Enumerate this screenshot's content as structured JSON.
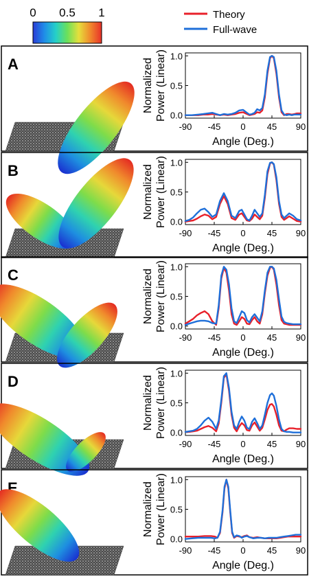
{
  "colorbar": {
    "ticks": [
      {
        "label": "0",
        "value": 0
      },
      {
        "label": "0.5",
        "value": 0.5
      },
      {
        "label": "1",
        "value": 1
      }
    ],
    "colormap": [
      "#2a3cd6",
      "#1f8ee8",
      "#25d0c8",
      "#6be05a",
      "#e6df3c",
      "#f08a2c",
      "#e8302a"
    ]
  },
  "legend": [
    {
      "name": "Theory",
      "color": "#e8202a"
    },
    {
      "name": "Full-wave",
      "color": "#1e6fd9"
    }
  ],
  "colors": {
    "theory": "#e8202a",
    "fullwave": "#1e6fd9"
  },
  "chart_data": [
    {
      "panel": "A",
      "type": "line",
      "ylabel_lines": [
        "Normalized",
        "Power (Linear)"
      ],
      "xlabel": "Angle (Deg.)",
      "xlim": [
        -90,
        90
      ],
      "ylim": [
        -0.05,
        1.05
      ],
      "xticks": [
        -90,
        -45,
        0,
        45,
        90
      ],
      "yticks": [
        0.0,
        0.5,
        1.0
      ],
      "ytick_labels": [
        "0.0",
        "0.5",
        "1.0"
      ],
      "series": [
        {
          "name": "Theory",
          "x": [
            -90,
            -80,
            -70,
            -62,
            -55,
            -48,
            -42,
            -36,
            -30,
            -24,
            -18,
            -12,
            -6,
            0,
            6,
            10,
            14,
            18,
            22,
            26,
            30,
            34,
            38,
            42,
            45,
            48,
            52,
            56,
            60,
            64,
            68,
            72,
            76,
            80,
            84,
            90
          ],
          "y": [
            0,
            0,
            0,
            0.01,
            0.01,
            0.02,
            0.01,
            0,
            0.01,
            0,
            0.01,
            0.02,
            0.04,
            0.05,
            0.02,
            0,
            0.01,
            0.02,
            0.05,
            0.04,
            0.08,
            0.3,
            0.7,
            0.96,
            1.0,
            0.96,
            0.7,
            0.3,
            0.05,
            0,
            0.02,
            0.02,
            0.01,
            0.02,
            0.03,
            0.03
          ]
        },
        {
          "name": "Full-wave",
          "x": [
            -90,
            -80,
            -70,
            -62,
            -55,
            -48,
            -42,
            -36,
            -30,
            -24,
            -18,
            -12,
            -6,
            0,
            6,
            10,
            14,
            18,
            22,
            26,
            30,
            34,
            38,
            42,
            45,
            48,
            52,
            56,
            60,
            64,
            68,
            72,
            76,
            80,
            84,
            90
          ],
          "y": [
            0,
            0,
            0.01,
            0.02,
            0.03,
            0.04,
            0.02,
            0,
            0.02,
            0.01,
            0.02,
            0.04,
            0.08,
            0.09,
            0.04,
            0.01,
            0.02,
            0.04,
            0.1,
            0.08,
            0.12,
            0.35,
            0.75,
            0.98,
            1.0,
            0.98,
            0.75,
            0.35,
            0.08,
            0.01,
            0,
            0.01,
            0,
            0.01,
            0.01,
            0.01
          ]
        }
      ]
    },
    {
      "panel": "B",
      "type": "line",
      "ylabel_lines": [
        "Normalized",
        "Power (Linear)"
      ],
      "xlabel": "Angle (Deg.)",
      "xlim": [
        -90,
        90
      ],
      "ylim": [
        -0.05,
        1.05
      ],
      "xticks": [
        -90,
        -45,
        0,
        45,
        90
      ],
      "yticks": [
        0.0,
        0.5,
        1.0
      ],
      "ytick_labels": [
        "0.0",
        "0.5",
        "1.0"
      ],
      "series": [
        {
          "name": "Theory",
          "x": [
            -90,
            -84,
            -78,
            -72,
            -66,
            -60,
            -54,
            -48,
            -42,
            -36,
            -30,
            -24,
            -18,
            -12,
            -6,
            -2,
            2,
            6,
            10,
            14,
            18,
            22,
            26,
            30,
            34,
            38,
            42,
            45,
            48,
            52,
            56,
            60,
            64,
            68,
            72,
            78,
            84,
            90
          ],
          "y": [
            0,
            0.01,
            0.02,
            0.05,
            0.09,
            0.12,
            0.1,
            0.04,
            0.08,
            0.3,
            0.43,
            0.3,
            0.06,
            0.03,
            0.12,
            0.14,
            0.08,
            0.02,
            0.01,
            0.05,
            0.12,
            0.08,
            0.04,
            0.1,
            0.4,
            0.8,
            0.98,
            1.0,
            0.96,
            0.7,
            0.3,
            0.08,
            0.03,
            0.06,
            0.09,
            0.05,
            0.01,
            0
          ]
        },
        {
          "name": "Full-wave",
          "x": [
            -90,
            -84,
            -78,
            -72,
            -66,
            -60,
            -54,
            -48,
            -42,
            -36,
            -30,
            -24,
            -18,
            -12,
            -6,
            -2,
            2,
            6,
            10,
            14,
            18,
            22,
            26,
            30,
            34,
            38,
            42,
            45,
            48,
            52,
            56,
            60,
            64,
            68,
            72,
            78,
            84,
            90
          ],
          "y": [
            0.01,
            0.03,
            0.07,
            0.14,
            0.2,
            0.22,
            0.16,
            0.08,
            0.12,
            0.35,
            0.48,
            0.35,
            0.1,
            0.06,
            0.18,
            0.2,
            0.12,
            0.04,
            0.02,
            0.1,
            0.2,
            0.14,
            0.08,
            0.14,
            0.45,
            0.85,
            0.99,
            1.0,
            0.97,
            0.75,
            0.35,
            0.12,
            0.06,
            0.1,
            0.14,
            0.1,
            0.04,
            0.02
          ]
        }
      ]
    },
    {
      "panel": "C",
      "type": "line",
      "ylabel_lines": [
        "Normalized",
        "Power (Linear)"
      ],
      "xlabel": "Angle (Deg.)",
      "xlim": [
        -90,
        90
      ],
      "ylim": [
        -0.05,
        1.05
      ],
      "xticks": [
        -90,
        -45,
        0,
        45,
        90
      ],
      "yticks": [
        0.0,
        0.5,
        1.0
      ],
      "ytick_labels": [
        "0.0",
        "0.5",
        "1.0"
      ],
      "series": [
        {
          "name": "Theory",
          "x": [
            -90,
            -84,
            -78,
            -72,
            -66,
            -60,
            -54,
            -48,
            -42,
            -38,
            -34,
            -30,
            -26,
            -22,
            -18,
            -14,
            -10,
            -6,
            -2,
            2,
            6,
            10,
            14,
            18,
            22,
            26,
            30,
            34,
            38,
            42,
            45,
            48,
            52,
            56,
            60,
            64,
            68,
            72,
            78,
            84,
            90
          ],
          "y": [
            0.04,
            0.08,
            0.12,
            0.18,
            0.22,
            0.25,
            0.2,
            0.08,
            0.02,
            0.3,
            0.8,
            0.98,
            0.9,
            0.6,
            0.2,
            0.04,
            0.02,
            0.08,
            0.15,
            0.12,
            0.04,
            0.03,
            0.1,
            0.15,
            0.08,
            0.04,
            0.2,
            0.55,
            0.85,
            0.98,
            1.0,
            0.95,
            0.7,
            0.35,
            0.1,
            0.04,
            0.03,
            0.02,
            0.02,
            0.02,
            0.02
          ]
        },
        {
          "name": "Full-wave",
          "x": [
            -90,
            -84,
            -78,
            -72,
            -66,
            -60,
            -54,
            -48,
            -42,
            -38,
            -34,
            -30,
            -26,
            -22,
            -18,
            -14,
            -10,
            -6,
            -2,
            2,
            6,
            10,
            14,
            18,
            22,
            26,
            30,
            34,
            38,
            42,
            45,
            48,
            52,
            56,
            60,
            64,
            68,
            72,
            78,
            84,
            90
          ],
          "y": [
            0.02,
            0.04,
            0.06,
            0.08,
            0.09,
            0.09,
            0.08,
            0.05,
            0.04,
            0.35,
            0.85,
            1.0,
            0.95,
            0.7,
            0.3,
            0.08,
            0.05,
            0.15,
            0.25,
            0.22,
            0.1,
            0.06,
            0.15,
            0.2,
            0.14,
            0.08,
            0.25,
            0.6,
            0.9,
            1.0,
            1.0,
            0.97,
            0.78,
            0.45,
            0.16,
            0.07,
            0.05,
            0.04,
            0.03,
            0.03,
            0.03
          ]
        }
      ]
    },
    {
      "panel": "D",
      "type": "line",
      "ylabel_lines": [
        "Normalized",
        "Power (Linear)"
      ],
      "xlabel": "Angle (Deg.)",
      "xlim": [
        -90,
        90
      ],
      "ylim": [
        -0.05,
        1.05
      ],
      "xticks": [
        -90,
        -45,
        0,
        45,
        90
      ],
      "yticks": [
        0.0,
        0.5,
        1.0
      ],
      "ytick_labels": [
        "0.0",
        "0.5",
        "1.0"
      ],
      "series": [
        {
          "name": "Theory",
          "x": [
            -90,
            -84,
            -78,
            -72,
            -66,
            -60,
            -54,
            -48,
            -42,
            -38,
            -34,
            -30,
            -26,
            -22,
            -18,
            -14,
            -10,
            -6,
            -2,
            2,
            6,
            10,
            14,
            18,
            22,
            26,
            30,
            34,
            38,
            42,
            45,
            48,
            52,
            56,
            60,
            64,
            68,
            72,
            78,
            84,
            90
          ],
          "y": [
            0.01,
            0.01,
            0.02,
            0.03,
            0.06,
            0.09,
            0.11,
            0.08,
            0.02,
            0.15,
            0.5,
            0.92,
            0.98,
            0.7,
            0.3,
            0.08,
            0.02,
            0.1,
            0.16,
            0.12,
            0.04,
            0.03,
            0.12,
            0.17,
            0.1,
            0.03,
            0.08,
            0.22,
            0.38,
            0.47,
            0.48,
            0.44,
            0.3,
            0.12,
            0.03,
            0.02,
            0.05,
            0.07,
            0.07,
            0.06,
            0.06
          ]
        },
        {
          "name": "Full-wave",
          "x": [
            -90,
            -84,
            -78,
            -72,
            -66,
            -60,
            -54,
            -48,
            -42,
            -38,
            -34,
            -30,
            -26,
            -22,
            -18,
            -14,
            -10,
            -6,
            -2,
            2,
            6,
            10,
            14,
            18,
            22,
            26,
            30,
            34,
            38,
            42,
            45,
            48,
            52,
            56,
            60,
            64,
            68,
            72,
            78,
            84,
            90
          ],
          "y": [
            0.01,
            0.02,
            0.03,
            0.06,
            0.12,
            0.2,
            0.25,
            0.18,
            0.06,
            0.2,
            0.55,
            0.95,
            1.0,
            0.75,
            0.35,
            0.12,
            0.06,
            0.18,
            0.27,
            0.2,
            0.08,
            0.06,
            0.18,
            0.24,
            0.16,
            0.06,
            0.12,
            0.3,
            0.5,
            0.63,
            0.66,
            0.62,
            0.45,
            0.22,
            0.06,
            0.02,
            0.01,
            0.01,
            0.0,
            0.0,
            0.0
          ]
        }
      ]
    },
    {
      "panel": "E",
      "type": "line",
      "ylabel_lines": [
        "Normalized",
        "Power (Linear)"
      ],
      "xlabel": "Angle (Deg.)",
      "xlim": [
        -90,
        90
      ],
      "ylim": [
        -0.05,
        1.05
      ],
      "xticks": [
        -90,
        -45,
        0,
        45,
        90
      ],
      "yticks": [
        0.0,
        0.5,
        1.0
      ],
      "ytick_labels": [
        "0.0",
        "0.5",
        "1.0"
      ],
      "series": [
        {
          "name": "Theory",
          "x": [
            -90,
            -80,
            -70,
            -60,
            -50,
            -44,
            -40,
            -36,
            -32,
            -29,
            -26,
            -23,
            -20,
            -17,
            -14,
            -10,
            -6,
            -2,
            2,
            6,
            10,
            16,
            22,
            28,
            34,
            40,
            46,
            52,
            58,
            64,
            70,
            76,
            82,
            90
          ],
          "y": [
            0.04,
            0.04,
            0.04,
            0.05,
            0.05,
            0.04,
            0.02,
            0.1,
            0.45,
            0.85,
            1.0,
            0.85,
            0.45,
            0.1,
            0.02,
            0.05,
            0.04,
            0.03,
            0.05,
            0.06,
            0.03,
            0.02,
            0.03,
            0.02,
            0.01,
            0.01,
            0.01,
            0.01,
            0.02,
            0.03,
            0.04,
            0.04,
            0.04,
            0.04
          ]
        },
        {
          "name": "Full-wave",
          "x": [
            -90,
            -80,
            -70,
            -60,
            -50,
            -44,
            -40,
            -36,
            -32,
            -29,
            -26,
            -23,
            -20,
            -17,
            -14,
            -10,
            -6,
            -2,
            2,
            6,
            10,
            16,
            22,
            28,
            34,
            40,
            46,
            52,
            58,
            64,
            70,
            76,
            82,
            90
          ],
          "y": [
            0.0,
            0.01,
            0.02,
            0.02,
            0.02,
            0.01,
            0.02,
            0.12,
            0.48,
            0.88,
            1.0,
            0.88,
            0.48,
            0.12,
            0.03,
            0.06,
            0.05,
            0.02,
            0.04,
            0.05,
            0.03,
            0.01,
            0.02,
            0.02,
            0.01,
            0.02,
            0.02,
            0.02,
            0.03,
            0.04,
            0.05,
            0.06,
            0.07,
            0.07
          ]
        }
      ]
    }
  ]
}
